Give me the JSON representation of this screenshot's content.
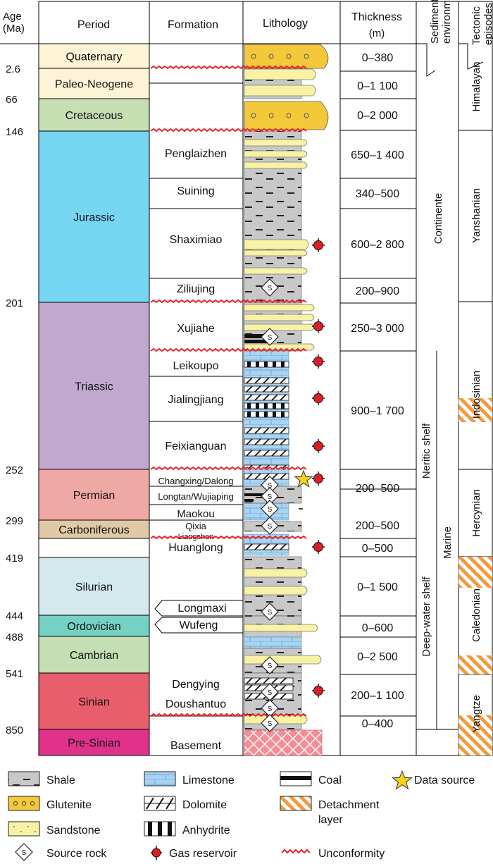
{
  "headers": {
    "age": "Age (Ma)",
    "period": "Period",
    "formation": "Formation",
    "lithology": "Lithology",
    "thickness": "Thickness",
    "thickness_unit": "(m)",
    "sedimentary": "Sedimentary environment",
    "tectonic": "Tectonic episodes"
  },
  "ages": [
    "2.6",
    "66",
    "146",
    "201",
    "252",
    "299",
    "419",
    "444",
    "488",
    "541",
    "850"
  ],
  "periods": [
    {
      "name": "Quaternary",
      "color": "#fdf3d6"
    },
    {
      "name": "Paleo-Neogene",
      "color": "#fdf3d6"
    },
    {
      "name": "Cretaceous",
      "color": "#c6e0b4"
    },
    {
      "name": "Jurassic",
      "color": "#76d6f1"
    },
    {
      "name": "Triassic",
      "color": "#c1a8cf"
    },
    {
      "name": "Permian",
      "color": "#efa9a4"
    },
    {
      "name": "Carboniferous",
      "color": "#e1c9a8"
    },
    {
      "name": "Silurian",
      "color": "#d3e9ee"
    },
    {
      "name": "Ordovician",
      "color": "#76d1c5"
    },
    {
      "name": "Cambrian",
      "color": "#c5dfb5"
    },
    {
      "name": "Sinian",
      "color": "#e95e6c"
    },
    {
      "name": "Pre-Sinian",
      "color": "#e1328b"
    }
  ],
  "formations": [
    "Penglaizhen",
    "Suining",
    "Shaximiao",
    "Ziliujing",
    "Xujiahe",
    "Leikoupo",
    "Jialingjiang",
    "Feixianguan",
    "Changxing/Dalong",
    "Longtan/Wujiaping",
    "Maokou",
    "Qixia",
    "Liangshan",
    "Huanglong",
    "Longmaxi",
    "Wufeng",
    "Dengying",
    "Doushantuo",
    "Basement"
  ],
  "thicknesses": [
    "0–380",
    "0–1 100",
    "0–2 000",
    "650–1 400",
    "340–500",
    "600–2 800",
    "200–900",
    "250–3 000",
    "900–1 700",
    "200–500",
    "200–500",
    "0–500",
    "0–1 500",
    "0–600",
    "0–2 500",
    "200–1 100",
    "0–400"
  ],
  "environments": {
    "sedimentary": "Sedimentary environment",
    "continent": "Continente",
    "neritic": "Neritic shelf",
    "deep": "Deep-water shelf",
    "marine": "Marine"
  },
  "tectonic": {
    "header": "Tectonic episodes",
    "episodes": [
      "Himalayan",
      "Yanshanian",
      "Indosinian",
      "Hercynian",
      "Caledonian",
      "Yangtze"
    ]
  },
  "legend": {
    "shale": "Shale",
    "limestone": "Limestone",
    "coal": "Coal",
    "data_source": "Data source",
    "glutenite": "Glutenite",
    "dolomite": "Dolomite",
    "detachment": "Detachment layer",
    "sandstone": "Sandstone",
    "anhydrite": "Anhydrite",
    "source_rock": "Source rock",
    "gas_reservoir": "Gas reservoir",
    "unconformity": "Unconformity",
    "source_symbol": "S"
  },
  "colors": {
    "shale": "#c8c8c8",
    "glutenite": "#f3c93b",
    "sandstone": "#f8f2a4",
    "limestone": "#a9d3f0",
    "basement": "#f28e96",
    "unconformity": "#e8212b",
    "gas": "#e01d26",
    "star": "#f7d11c",
    "detachment": "#f39a3d"
  }
}
